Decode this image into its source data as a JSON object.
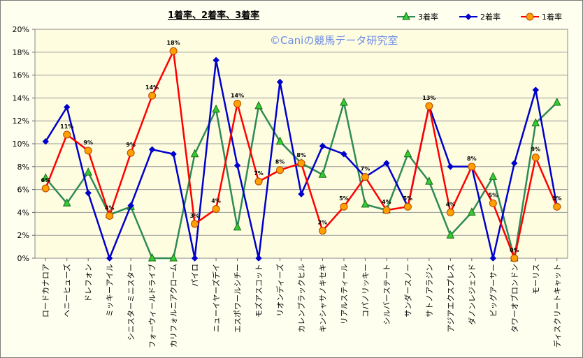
{
  "chart_data": {
    "type": "line",
    "title": "1着率、2着率、3着率",
    "watermark": "©Caniの競馬データ研究室",
    "y_ticks": [
      "0%",
      "2%",
      "4%",
      "6%",
      "8%",
      "10%",
      "12%",
      "14%",
      "16%",
      "18%",
      "20%"
    ],
    "ylim": [
      0,
      20
    ],
    "grid": "horizontal",
    "legend_position": "top-right",
    "categories": [
      "ロードカナロア",
      "ヘニーヒューズ",
      "ドレフォン",
      "ミッキーアイル",
      "シニスターミニスター",
      "フォーウィールドライブ",
      "カリフォルニアクローム",
      "パイロ",
      "ニューイヤーズデイ",
      "エスポワールシチー",
      "モズアスコット",
      "リオンディーズ",
      "カレンブラックヒル",
      "キンシャサノキセキ",
      "リアルスティール",
      "コパノリッキー",
      "シルバーステート",
      "サンダースノー",
      "サトノアラジン",
      "アジアエクスプレス",
      "ダノンレジェンド",
      "ビッグアーサー",
      "タワーオブロンドン",
      "モーリス",
      "ディスクリートキャット"
    ],
    "series": [
      {
        "name": "3着率",
        "color": "#2e8b57",
        "marker_fill": "#33cc33",
        "marker": "triangle",
        "values": [
          7.0,
          4.8,
          7.5,
          3.8,
          4.5,
          0,
          0,
          9.1,
          13.0,
          2.7,
          13.3,
          10.2,
          8.3,
          7.3,
          13.6,
          4.7,
          4.2,
          9.1,
          6.7,
          2.0,
          4.0,
          7.1,
          0,
          11.8,
          13.6
        ]
      },
      {
        "name": "2着率",
        "color": "#0000cc",
        "marker_fill": "#0000cc",
        "marker": "diamond",
        "values": [
          10.2,
          13.2,
          5.7,
          0,
          4.6,
          9.5,
          9.1,
          0,
          17.3,
          8.1,
          0,
          15.4,
          5.6,
          9.8,
          9.1,
          7.1,
          8.3,
          4.5,
          13.3,
          8.0,
          8.0,
          0,
          8.3,
          14.7,
          4.5
        ]
      },
      {
        "name": "1着率",
        "color": "#ff0000",
        "marker_fill": "#ffa000",
        "marker": "circle",
        "values": [
          6.1,
          10.8,
          9.4,
          3.7,
          9.2,
          14.2,
          18.1,
          3.0,
          4.3,
          13.5,
          6.7,
          7.7,
          8.3,
          2.4,
          4.5,
          7.1,
          4.2,
          4.5,
          13.3,
          4.0,
          8.0,
          4.8,
          0,
          8.8,
          4.5
        ],
        "labels": [
          "6%",
          "11%",
          "9%",
          "4%",
          "9%",
          "14%",
          "18%",
          "3%",
          "4%",
          "14%",
          "7%",
          "8%",
          "8%",
          "2%",
          "5%",
          "7%",
          "4%",
          "5%",
          "13%",
          "4%",
          "8%",
          "5%",
          "0%",
          "9%",
          "5%"
        ]
      }
    ]
  }
}
